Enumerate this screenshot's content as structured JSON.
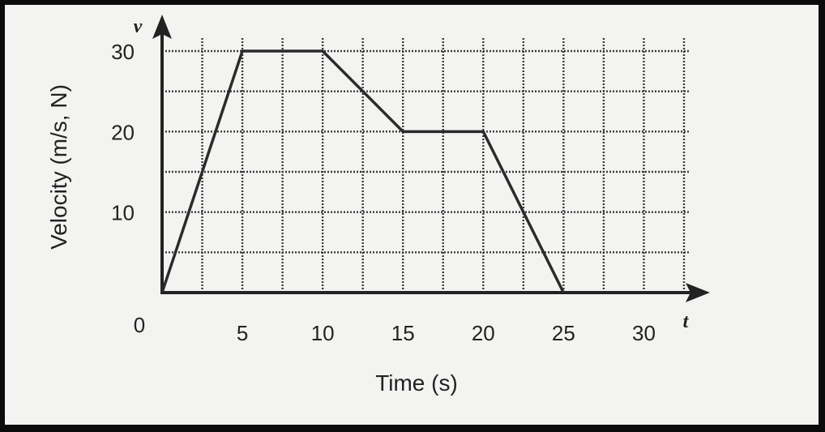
{
  "chart_data": {
    "type": "line",
    "title": "",
    "xlabel": "Time (s)",
    "ylabel": "Velocity (m/s, N)",
    "x_axis_var": "t",
    "y_axis_var": "v",
    "origin_label": "0",
    "xlim": [
      0,
      32.5
    ],
    "ylim": [
      0,
      30
    ],
    "grid": true,
    "x_ticks": [
      5,
      10,
      15,
      20,
      25,
      30
    ],
    "y_ticks": [
      10,
      20,
      30
    ],
    "series": [
      {
        "x": [
          0,
          5,
          10,
          15,
          20,
          25
        ],
        "y": [
          0,
          30,
          30,
          20,
          20,
          0
        ]
      }
    ],
    "colors": {
      "line": "#2b2b2b",
      "grid": "#3a3a3a",
      "background": "#f3f3f1"
    }
  }
}
